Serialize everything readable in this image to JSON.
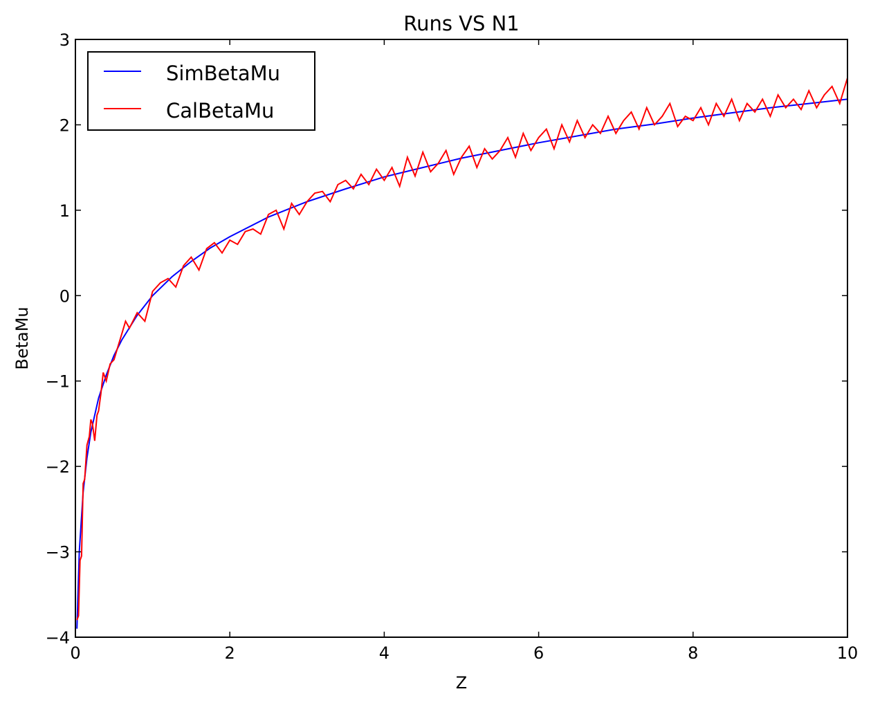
{
  "chart_data": {
    "type": "line",
    "title": "Runs VS N1",
    "xlabel": "Z",
    "ylabel": "BetaMu",
    "xlim": [
      0,
      10
    ],
    "ylim": [
      -4,
      3
    ],
    "xticks": [
      0,
      2,
      4,
      6,
      8,
      10
    ],
    "xtick_labels": [
      "0",
      "2",
      "4",
      "6",
      "8",
      "10"
    ],
    "yticks": [
      -4,
      -3,
      -2,
      -1,
      0,
      1,
      2,
      3
    ],
    "ytick_labels": [
      "−4",
      "−3",
      "−2",
      "−1",
      "0",
      "1",
      "2",
      "3"
    ],
    "grid": false,
    "legend_position": "upper-left",
    "series": [
      {
        "name": "SimBetaMu",
        "color": "#0000ff",
        "x": [
          0.02,
          0.05,
          0.1,
          0.15,
          0.2,
          0.3,
          0.4,
          0.5,
          0.6,
          0.8,
          1.0,
          1.25,
          1.5,
          1.75,
          2.0,
          2.5,
          3.0,
          3.5,
          4.0,
          4.5,
          5.0,
          5.5,
          6.0,
          6.5,
          7.0,
          7.5,
          8.0,
          8.5,
          9.0,
          9.5,
          10.0
        ],
        "y": [
          -3.9,
          -3.0,
          -2.3,
          -1.9,
          -1.6,
          -1.2,
          -0.93,
          -0.7,
          -0.52,
          -0.23,
          0.0,
          0.22,
          0.4,
          0.56,
          0.69,
          0.92,
          1.1,
          1.25,
          1.39,
          1.5,
          1.61,
          1.7,
          1.79,
          1.87,
          1.95,
          2.01,
          2.08,
          2.14,
          2.2,
          2.25,
          2.3
        ]
      },
      {
        "name": "CalBetaMu",
        "color": "#ff0000",
        "x": [
          0.02,
          0.04,
          0.06,
          0.08,
          0.1,
          0.12,
          0.15,
          0.18,
          0.2,
          0.22,
          0.25,
          0.28,
          0.3,
          0.33,
          0.36,
          0.4,
          0.45,
          0.5,
          0.55,
          0.6,
          0.65,
          0.7,
          0.8,
          0.9,
          1.0,
          1.1,
          1.2,
          1.3,
          1.4,
          1.5,
          1.6,
          1.7,
          1.8,
          1.9,
          2.0,
          2.1,
          2.2,
          2.3,
          2.4,
          2.5,
          2.6,
          2.7,
          2.8,
          2.9,
          3.0,
          3.1,
          3.2,
          3.3,
          3.4,
          3.5,
          3.6,
          3.7,
          3.8,
          3.9,
          4.0,
          4.1,
          4.2,
          4.3,
          4.4,
          4.5,
          4.6,
          4.7,
          4.8,
          4.9,
          5.0,
          5.1,
          5.2,
          5.3,
          5.4,
          5.5,
          5.6,
          5.7,
          5.8,
          5.9,
          6.0,
          6.1,
          6.2,
          6.3,
          6.4,
          6.5,
          6.6,
          6.7,
          6.8,
          6.9,
          7.0,
          7.1,
          7.2,
          7.3,
          7.4,
          7.5,
          7.6,
          7.7,
          7.8,
          7.9,
          8.0,
          8.1,
          8.2,
          8.3,
          8.4,
          8.5,
          8.6,
          8.7,
          8.8,
          8.9,
          9.0,
          9.1,
          9.2,
          9.3,
          9.4,
          9.5,
          9.6,
          9.7,
          9.8,
          9.9,
          10.0
        ],
        "y": [
          -3.8,
          -3.75,
          -3.1,
          -3.05,
          -2.2,
          -2.15,
          -1.75,
          -1.65,
          -1.45,
          -1.5,
          -1.7,
          -1.4,
          -1.35,
          -1.15,
          -0.9,
          -1.0,
          -0.8,
          -0.75,
          -0.6,
          -0.45,
          -0.3,
          -0.38,
          -0.2,
          -0.3,
          0.05,
          0.15,
          0.2,
          0.1,
          0.35,
          0.45,
          0.3,
          0.55,
          0.62,
          0.5,
          0.65,
          0.6,
          0.75,
          0.78,
          0.72,
          0.95,
          1.0,
          0.78,
          1.08,
          0.95,
          1.1,
          1.2,
          1.22,
          1.1,
          1.3,
          1.35,
          1.25,
          1.42,
          1.3,
          1.48,
          1.35,
          1.5,
          1.28,
          1.62,
          1.4,
          1.68,
          1.45,
          1.55,
          1.7,
          1.42,
          1.62,
          1.75,
          1.5,
          1.72,
          1.6,
          1.7,
          1.85,
          1.62,
          1.9,
          1.7,
          1.85,
          1.95,
          1.72,
          2.0,
          1.8,
          2.05,
          1.85,
          2.0,
          1.9,
          2.1,
          1.9,
          2.05,
          2.15,
          1.95,
          2.2,
          2.0,
          2.1,
          2.25,
          1.98,
          2.1,
          2.05,
          2.2,
          2.0,
          2.25,
          2.1,
          2.3,
          2.05,
          2.25,
          2.15,
          2.3,
          2.1,
          2.35,
          2.2,
          2.3,
          2.18,
          2.4,
          2.2,
          2.35,
          2.45,
          2.25,
          2.55
        ]
      }
    ]
  }
}
